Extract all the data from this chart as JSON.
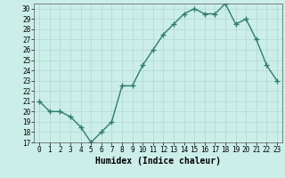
{
  "x": [
    0,
    1,
    2,
    3,
    4,
    5,
    6,
    7,
    8,
    9,
    10,
    11,
    12,
    13,
    14,
    15,
    16,
    17,
    18,
    19,
    20,
    21,
    22,
    23
  ],
  "y": [
    21,
    20,
    20,
    19.5,
    18.5,
    17,
    18,
    19,
    22.5,
    22.5,
    24.5,
    26,
    27.5,
    28.5,
    29.5,
    30,
    29.5,
    29.5,
    30.5,
    28.5,
    29,
    27,
    24.5,
    23
  ],
  "line_color": "#2e7d6e",
  "marker": "+",
  "marker_size": 4,
  "bg_color": "#cceee8",
  "grid_color": "#b0d8d0",
  "xlabel": "Humidex (Indice chaleur)",
  "xlim": [
    -0.5,
    23.5
  ],
  "ylim": [
    17,
    30.5
  ],
  "yticks": [
    17,
    18,
    19,
    20,
    21,
    22,
    23,
    24,
    25,
    26,
    27,
    28,
    29,
    30
  ],
  "xticks": [
    0,
    1,
    2,
    3,
    4,
    5,
    6,
    7,
    8,
    9,
    10,
    11,
    12,
    13,
    14,
    15,
    16,
    17,
    18,
    19,
    20,
    21,
    22,
    23
  ],
  "tick_fontsize": 5.5,
  "xlabel_fontsize": 7,
  "line_width": 1.0,
  "marker_color": "#2e7d6e"
}
